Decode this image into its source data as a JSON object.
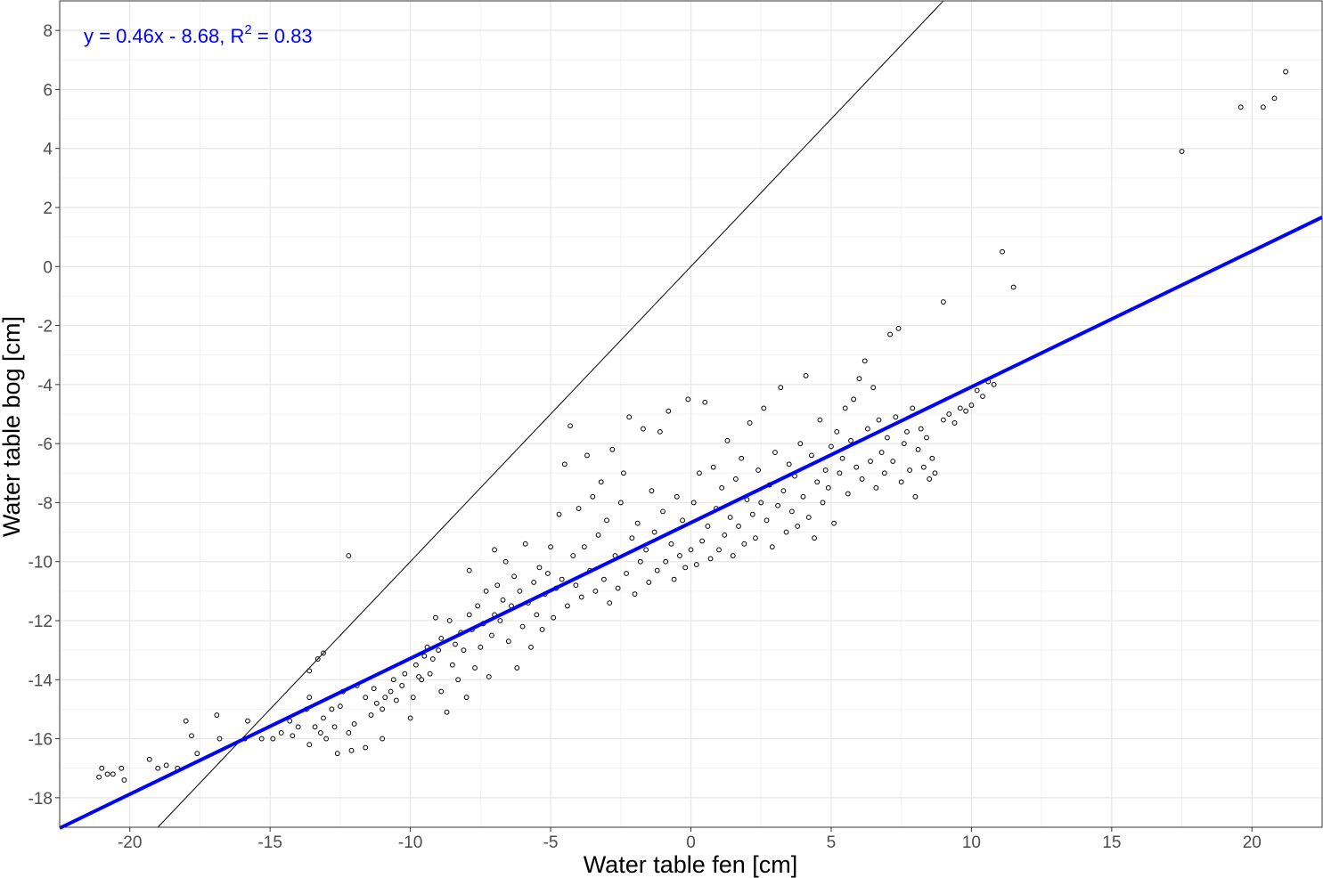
{
  "chart_data": {
    "type": "scatter",
    "title": "",
    "xlabel": "Water table fen [cm]",
    "ylabel": "Water table bog [cm]",
    "xlim": [
      -22.5,
      22.5
    ],
    "ylim": [
      -19.0,
      9.0
    ],
    "x_ticks": [
      -20,
      -15,
      -10,
      -5,
      0,
      5,
      10,
      15,
      20
    ],
    "y_ticks": [
      -18,
      -16,
      -14,
      -12,
      -10,
      -8,
      -6,
      -4,
      -2,
      0,
      2,
      4,
      6,
      8
    ],
    "grid": true,
    "legend": "none",
    "annotation": {
      "prefix": "y = 0.46x - 8.68,  R",
      "superscript": "2",
      "suffix": " = 0.83",
      "color": "#0000FF"
    },
    "regression": {
      "slope": 0.46,
      "intercept": -8.68,
      "color": "#0000FF"
    },
    "reference_line": {
      "slope": 1,
      "intercept": 0,
      "color": "#000000"
    },
    "points_note": "approximate, read from figure",
    "points": [
      [
        -21.1,
        -17.3
      ],
      [
        -21.0,
        -17.0
      ],
      [
        -20.8,
        -17.2
      ],
      [
        -20.6,
        -17.2
      ],
      [
        -20.3,
        -17.0
      ],
      [
        -20.2,
        -17.4
      ],
      [
        -19.3,
        -16.7
      ],
      [
        -19.0,
        -17.0
      ],
      [
        -18.7,
        -16.9
      ],
      [
        -18.3,
        -17.0
      ],
      [
        -18.0,
        -15.4
      ],
      [
        -17.8,
        -15.9
      ],
      [
        -17.6,
        -16.5
      ],
      [
        -16.9,
        -15.2
      ],
      [
        -16.8,
        -16.0
      ],
      [
        -15.9,
        -16.0
      ],
      [
        -15.8,
        -15.4
      ],
      [
        -15.3,
        -16.0
      ],
      [
        -14.9,
        -16.0
      ],
      [
        -14.6,
        -15.8
      ],
      [
        -14.3,
        -15.4
      ],
      [
        -14.2,
        -15.9
      ],
      [
        -14.0,
        -15.6
      ],
      [
        -13.7,
        -15.0
      ],
      [
        -13.6,
        -14.6
      ],
      [
        -13.6,
        -16.2
      ],
      [
        -13.4,
        -15.6
      ],
      [
        -13.2,
        -15.8
      ],
      [
        -13.1,
        -15.3
      ],
      [
        -13.0,
        -16.0
      ],
      [
        -13.3,
        -13.3
      ],
      [
        -13.6,
        -13.7
      ],
      [
        -13.1,
        -13.1
      ],
      [
        -12.8,
        -15.0
      ],
      [
        -12.7,
        -15.6
      ],
      [
        -12.6,
        -16.5
      ],
      [
        -12.5,
        -14.9
      ],
      [
        -12.4,
        -14.4
      ],
      [
        -12.2,
        -15.8
      ],
      [
        -12.2,
        -9.8
      ],
      [
        -12.1,
        -16.4
      ],
      [
        -12.0,
        -15.5
      ],
      [
        -11.9,
        -14.2
      ],
      [
        -11.6,
        -16.3
      ],
      [
        -11.6,
        -14.6
      ],
      [
        -11.4,
        -15.2
      ],
      [
        -11.3,
        -14.3
      ],
      [
        -11.2,
        -14.8
      ],
      [
        -11.0,
        -15.0
      ],
      [
        -11.0,
        -16.0
      ],
      [
        -10.9,
        -14.6
      ],
      [
        -10.7,
        -14.4
      ],
      [
        -10.6,
        -14.0
      ],
      [
        -10.5,
        -14.7
      ],
      [
        -10.3,
        -14.2
      ],
      [
        -10.2,
        -13.8
      ],
      [
        -10.0,
        -15.3
      ],
      [
        -9.9,
        -14.6
      ],
      [
        -9.8,
        -13.5
      ],
      [
        -9.7,
        -13.9
      ],
      [
        -9.6,
        -14.0
      ],
      [
        -9.5,
        -13.2
      ],
      [
        -9.4,
        -12.9
      ],
      [
        -9.3,
        -13.8
      ],
      [
        -9.2,
        -13.3
      ],
      [
        -9.1,
        -11.9
      ],
      [
        -9.0,
        -13.0
      ],
      [
        -8.9,
        -12.6
      ],
      [
        -8.9,
        -14.4
      ],
      [
        -8.7,
        -15.1
      ],
      [
        -8.6,
        -12.0
      ],
      [
        -8.5,
        -13.5
      ],
      [
        -8.4,
        -12.8
      ],
      [
        -8.3,
        -14.0
      ],
      [
        -8.2,
        -12.4
      ],
      [
        -8.1,
        -13.0
      ],
      [
        -8.0,
        -14.6
      ],
      [
        -7.9,
        -11.8
      ],
      [
        -7.9,
        -10.3
      ],
      [
        -7.8,
        -12.3
      ],
      [
        -7.7,
        -13.6
      ],
      [
        -7.6,
        -11.5
      ],
      [
        -7.5,
        -12.9
      ],
      [
        -7.4,
        -12.1
      ],
      [
        -7.3,
        -11.0
      ],
      [
        -7.2,
        -13.9
      ],
      [
        -7.1,
        -12.5
      ],
      [
        -7.0,
        -11.8
      ],
      [
        -7.0,
        -9.6
      ],
      [
        -6.9,
        -10.8
      ],
      [
        -6.8,
        -12.0
      ],
      [
        -6.7,
        -11.3
      ],
      [
        -6.6,
        -10.0
      ],
      [
        -6.5,
        -12.7
      ],
      [
        -6.4,
        -11.5
      ],
      [
        -6.3,
        -10.5
      ],
      [
        -6.2,
        -13.6
      ],
      [
        -6.1,
        -11.0
      ],
      [
        -6.0,
        -12.2
      ],
      [
        -5.9,
        -9.4
      ],
      [
        -5.8,
        -11.4
      ],
      [
        -5.7,
        -12.9
      ],
      [
        -5.6,
        -10.7
      ],
      [
        -5.5,
        -11.8
      ],
      [
        -5.4,
        -10.2
      ],
      [
        -5.3,
        -12.3
      ],
      [
        -5.2,
        -11.1
      ],
      [
        -5.1,
        -10.4
      ],
      [
        -5.0,
        -9.5
      ],
      [
        -4.9,
        -11.9
      ],
      [
        -4.8,
        -10.9
      ],
      [
        -4.7,
        -8.4
      ],
      [
        -4.6,
        -10.6
      ],
      [
        -4.5,
        -6.7
      ],
      [
        -4.4,
        -11.5
      ],
      [
        -4.3,
        -5.4
      ],
      [
        -4.2,
        -9.8
      ],
      [
        -4.1,
        -10.8
      ],
      [
        -4.0,
        -8.2
      ],
      [
        -3.9,
        -11.2
      ],
      [
        -3.8,
        -9.5
      ],
      [
        -3.7,
        -6.4
      ],
      [
        -3.6,
        -10.3
      ],
      [
        -3.5,
        -7.8
      ],
      [
        -3.4,
        -11.0
      ],
      [
        -3.3,
        -9.1
      ],
      [
        -3.2,
        -7.3
      ],
      [
        -3.1,
        -10.6
      ],
      [
        -3.0,
        -8.6
      ],
      [
        -2.9,
        -11.4
      ],
      [
        -2.8,
        -6.2
      ],
      [
        -2.7,
        -9.8
      ],
      [
        -2.6,
        -10.9
      ],
      [
        -2.5,
        -8.0
      ],
      [
        -2.4,
        -7.0
      ],
      [
        -2.3,
        -10.4
      ],
      [
        -2.2,
        -5.1
      ],
      [
        -2.1,
        -9.2
      ],
      [
        -2.0,
        -11.1
      ],
      [
        -1.9,
        -8.7
      ],
      [
        -1.8,
        -10.0
      ],
      [
        -1.7,
        -5.5
      ],
      [
        -1.6,
        -9.6
      ],
      [
        -1.5,
        -10.7
      ],
      [
        -1.4,
        -7.6
      ],
      [
        -1.3,
        -9.0
      ],
      [
        -1.2,
        -10.3
      ],
      [
        -1.1,
        -5.6
      ],
      [
        -1.0,
        -8.3
      ],
      [
        -0.9,
        -10.0
      ],
      [
        -0.8,
        -4.9
      ],
      [
        -0.7,
        -9.4
      ],
      [
        -0.6,
        -10.6
      ],
      [
        -0.5,
        -7.8
      ],
      [
        -0.4,
        -9.8
      ],
      [
        -0.3,
        -8.6
      ],
      [
        -0.2,
        -10.2
      ],
      [
        -0.1,
        -4.5
      ],
      [
        0.0,
        -9.6
      ],
      [
        0.1,
        -8.0
      ],
      [
        0.2,
        -10.1
      ],
      [
        0.3,
        -7.0
      ],
      [
        0.4,
        -9.3
      ],
      [
        0.5,
        -4.6
      ],
      [
        0.6,
        -8.8
      ],
      [
        0.7,
        -9.9
      ],
      [
        0.8,
        -6.8
      ],
      [
        0.9,
        -8.2
      ],
      [
        1.0,
        -9.6
      ],
      [
        1.1,
        -7.5
      ],
      [
        1.2,
        -9.1
      ],
      [
        1.3,
        -5.9
      ],
      [
        1.4,
        -8.5
      ],
      [
        1.5,
        -9.8
      ],
      [
        1.6,
        -7.2
      ],
      [
        1.7,
        -8.8
      ],
      [
        1.8,
        -6.5
      ],
      [
        1.9,
        -9.4
      ],
      [
        2.0,
        -7.9
      ],
      [
        2.1,
        -5.3
      ],
      [
        2.2,
        -8.4
      ],
      [
        2.3,
        -9.2
      ],
      [
        2.4,
        -6.9
      ],
      [
        2.5,
        -8.0
      ],
      [
        2.6,
        -4.8
      ],
      [
        2.7,
        -8.6
      ],
      [
        2.8,
        -7.4
      ],
      [
        2.9,
        -9.5
      ],
      [
        3.0,
        -6.3
      ],
      [
        3.1,
        -8.1
      ],
      [
        3.2,
        -4.1
      ],
      [
        3.3,
        -7.6
      ],
      [
        3.4,
        -9.0
      ],
      [
        3.5,
        -6.7
      ],
      [
        3.6,
        -8.3
      ],
      [
        3.7,
        -7.1
      ],
      [
        3.8,
        -8.8
      ],
      [
        3.9,
        -6.0
      ],
      [
        4.0,
        -7.8
      ],
      [
        4.1,
        -3.7
      ],
      [
        4.2,
        -8.5
      ],
      [
        4.3,
        -6.4
      ],
      [
        4.4,
        -9.2
      ],
      [
        4.5,
        -7.3
      ],
      [
        4.6,
        -5.2
      ],
      [
        4.7,
        -8.0
      ],
      [
        4.8,
        -6.9
      ],
      [
        4.9,
        -7.5
      ],
      [
        5.0,
        -6.1
      ],
      [
        5.1,
        -8.7
      ],
      [
        5.2,
        -5.6
      ],
      [
        5.3,
        -7.0
      ],
      [
        5.4,
        -6.5
      ],
      [
        5.5,
        -4.8
      ],
      [
        5.6,
        -7.7
      ],
      [
        5.7,
        -5.9
      ],
      [
        5.8,
        -4.5
      ],
      [
        5.9,
        -6.8
      ],
      [
        6.0,
        -3.8
      ],
      [
        6.1,
        -7.2
      ],
      [
        6.2,
        -3.2
      ],
      [
        6.3,
        -5.5
      ],
      [
        6.4,
        -6.6
      ],
      [
        6.5,
        -4.1
      ],
      [
        6.6,
        -7.5
      ],
      [
        6.7,
        -5.2
      ],
      [
        6.8,
        -6.3
      ],
      [
        6.9,
        -7.0
      ],
      [
        7.0,
        -5.8
      ],
      [
        7.1,
        -2.3
      ],
      [
        7.2,
        -6.6
      ],
      [
        7.3,
        -5.1
      ],
      [
        7.4,
        -2.1
      ],
      [
        7.5,
        -7.3
      ],
      [
        7.6,
        -6.0
      ],
      [
        7.7,
        -5.6
      ],
      [
        7.8,
        -6.9
      ],
      [
        7.9,
        -4.8
      ],
      [
        8.0,
        -7.8
      ],
      [
        8.1,
        -6.2
      ],
      [
        8.2,
        -5.5
      ],
      [
        8.3,
        -6.8
      ],
      [
        8.4,
        -5.8
      ],
      [
        8.5,
        -7.2
      ],
      [
        8.6,
        -6.5
      ],
      [
        8.7,
        -7.0
      ],
      [
        9.0,
        -1.2
      ],
      [
        9.0,
        -5.2
      ],
      [
        9.2,
        -5.0
      ],
      [
        9.4,
        -5.3
      ],
      [
        9.6,
        -4.8
      ],
      [
        9.8,
        -4.9
      ],
      [
        10.0,
        -4.7
      ],
      [
        10.2,
        -4.2
      ],
      [
        10.4,
        -4.4
      ],
      [
        10.6,
        -3.9
      ],
      [
        10.8,
        -4.0
      ],
      [
        11.1,
        0.5
      ],
      [
        11.5,
        -0.7
      ],
      [
        17.5,
        3.9
      ],
      [
        19.6,
        5.4
      ],
      [
        20.4,
        5.4
      ],
      [
        20.8,
        5.7
      ],
      [
        21.2,
        6.6
      ]
    ]
  }
}
